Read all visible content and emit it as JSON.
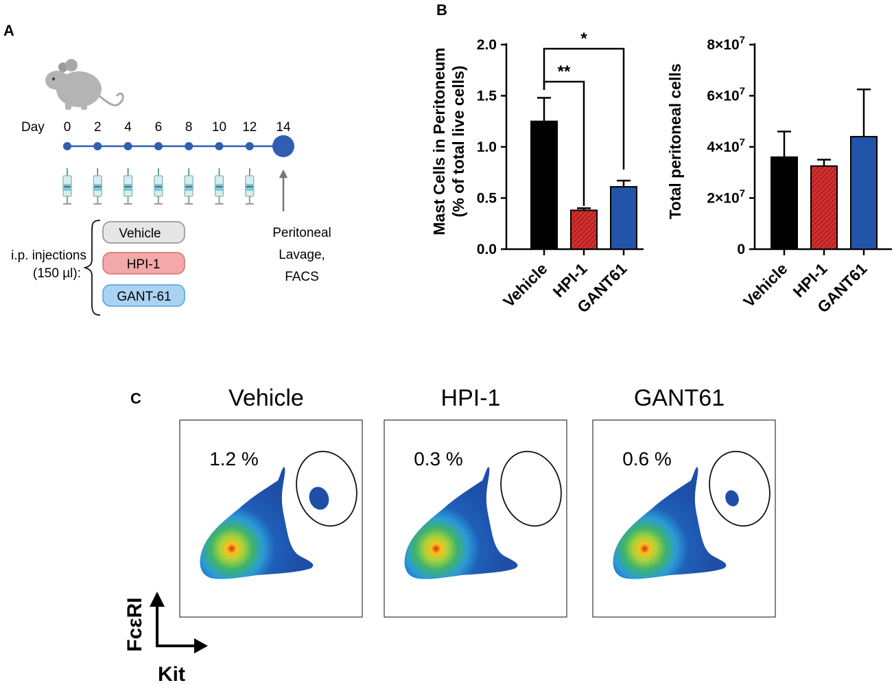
{
  "panels": {
    "a": "A",
    "b": "B",
    "c": "C"
  },
  "timeline": {
    "day_label": "Day",
    "days": [
      "0",
      "2",
      "4",
      "6",
      "8",
      "10",
      "12",
      "14"
    ],
    "injection_label_line1": "i.p. injections",
    "injection_label_line2": "(150 µl):",
    "treatments": [
      "Vehicle",
      "HPI-1",
      "GANT-61"
    ],
    "endpoint_line1": "Peritoneal",
    "endpoint_line2": "Lavage,",
    "endpoint_line3": "FACS"
  },
  "colors": {
    "vehicle": "#000000",
    "hpi1": "#d32f2f",
    "gant61": "#2354a8",
    "timeline": "#2e5fb0",
    "pill_vehicle": "#e6e6e6",
    "pill_hpi1": "#f3a9a9",
    "pill_gant61": "#a9d3f1"
  },
  "chart_data": [
    {
      "type": "bar",
      "title": "",
      "ylabel_line1": "Mast Cells in Peritoneum",
      "ylabel_line2": "(% of total live cells)",
      "categories": [
        "Vehicle",
        "HPI-1",
        "GANT61"
      ],
      "values": [
        1.25,
        0.38,
        0.61
      ],
      "errors": [
        0.23,
        0.02,
        0.06
      ],
      "ylim": [
        0,
        2.0
      ],
      "yticks": [
        0,
        0.5,
        1.0,
        1.5,
        2.0
      ],
      "ytick_labels": [
        "0.0",
        "0.5",
        "1.0",
        "1.5",
        "2.0"
      ],
      "significance": [
        {
          "from": "Vehicle",
          "to": "GANT61",
          "label": "*"
        },
        {
          "from": "Vehicle",
          "to": "HPI-1",
          "label": "**"
        }
      ]
    },
    {
      "type": "bar",
      "title": "",
      "ylabel_line1": "Total peritoneal cells",
      "categories": [
        "Vehicle",
        "HPI-1",
        "GANT61"
      ],
      "values": [
        36000000,
        32500000,
        44000000
      ],
      "errors": [
        10000000,
        2500000,
        18500000
      ],
      "ylim": [
        0,
        80000000
      ],
      "yticks": [
        0,
        20000000,
        40000000,
        60000000,
        80000000
      ],
      "ytick_labels": [
        "0",
        "2×10",
        "4×10",
        "6×10",
        "8×10"
      ],
      "ytick_exponent": "7"
    }
  ],
  "facs": {
    "plots": [
      {
        "title": "Vehicle",
        "percent": "1.2 %",
        "mast_fraction": 1.2
      },
      {
        "title": "HPI-1",
        "percent": "0.3 %",
        "mast_fraction": 0.3
      },
      {
        "title": "GANT61",
        "percent": "0.6 %",
        "mast_fraction": 0.6
      }
    ],
    "y_axis_label": "FcεRI",
    "x_axis_label": "Kit"
  }
}
